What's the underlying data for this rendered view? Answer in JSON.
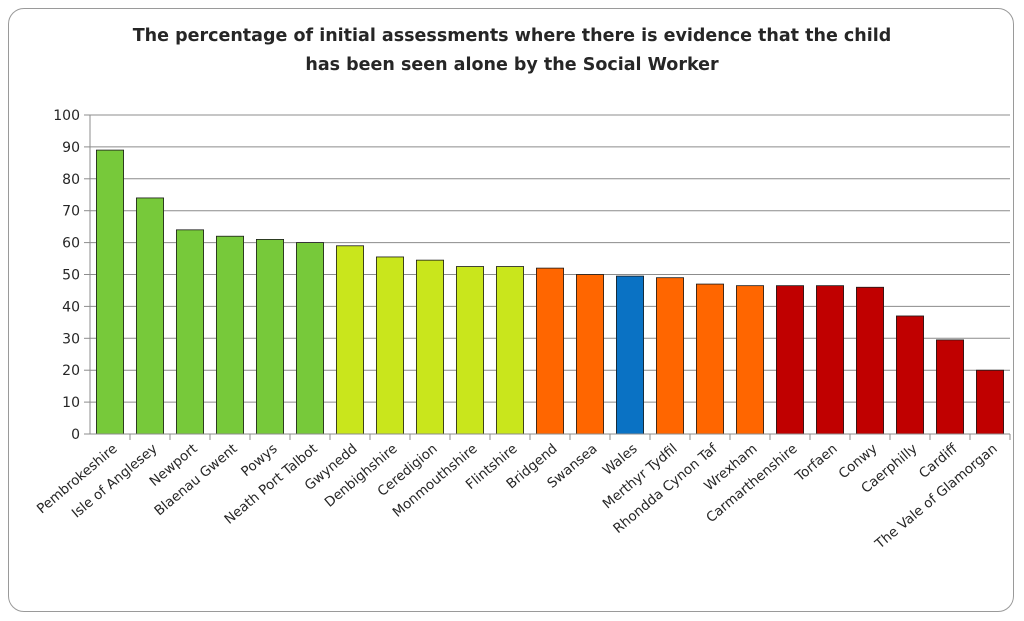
{
  "chart_data": {
    "type": "bar",
    "title_lines": [
      "The percentage of initial assessments where there is evidence that the child",
      "has been seen alone by the Social Worker"
    ],
    "categories": [
      "Pembrokeshire",
      "Isle of Anglesey",
      "Newport",
      "Blaenau Gwent",
      "Powys",
      "Neath Port Talbot",
      "Gwynedd",
      "Denbighshire",
      "Ceredigion",
      "Monmouthshire",
      "Flintshire",
      "Bridgend",
      "Swansea",
      "Wales",
      "Merthyr Tydfil",
      "Rhondda Cynon Taf",
      "Wrexham",
      "Carmarthenshire",
      "Torfaen",
      "Conwy",
      "Caerphilly",
      "Cardiff",
      "The Vale of Glamorgan"
    ],
    "values": [
      89,
      74,
      64,
      62,
      61,
      60,
      59,
      55.5,
      54.5,
      52.5,
      52.5,
      52,
      50,
      49.5,
      49,
      47,
      46.5,
      46.5,
      46.5,
      46,
      37,
      29.5,
      20
    ],
    "colors": [
      "#77c93a",
      "#77c93a",
      "#77c93a",
      "#77c93a",
      "#77c93a",
      "#77c93a",
      "#c9e61c",
      "#c9e61c",
      "#c9e61c",
      "#c9e61c",
      "#c9e61c",
      "#ff6600",
      "#ff6600",
      "#0a72c4",
      "#ff6600",
      "#ff6600",
      "#ff6600",
      "#c00000",
      "#c00000",
      "#c00000",
      "#c00000",
      "#c00000",
      "#c00000"
    ],
    "ylim": [
      0,
      100
    ],
    "yticks": [
      0,
      10,
      20,
      30,
      40,
      50,
      60,
      70,
      80,
      90,
      100
    ],
    "ytick_labels": [
      "0",
      "10",
      "20",
      "30",
      "40",
      "50",
      "60",
      "70",
      "80",
      "90",
      "100"
    ],
    "grid": true,
    "legend": "none"
  }
}
